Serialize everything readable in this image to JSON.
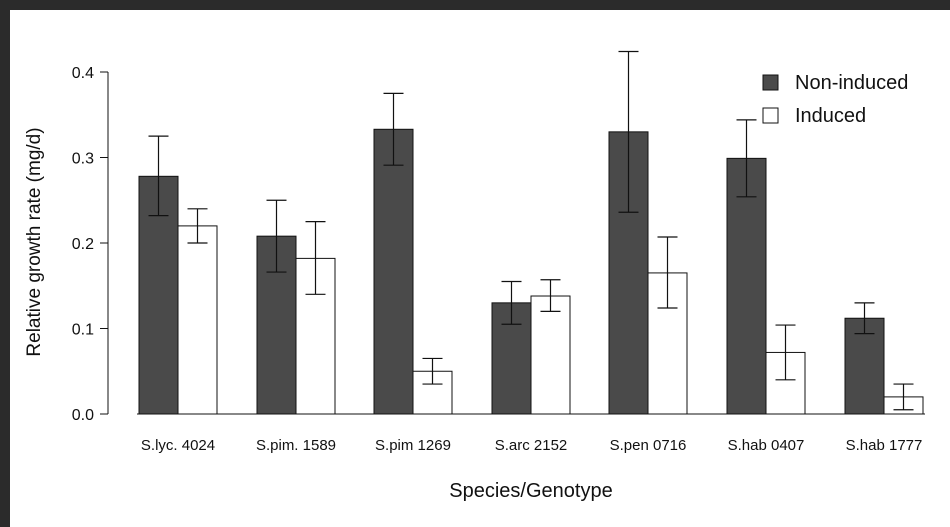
{
  "chart_data": {
    "type": "bar",
    "title": "",
    "xlabel": "Species/Genotype",
    "ylabel": "Relative growth rate (mg/d)",
    "ylim": [
      0,
      0.4
    ],
    "yticks": [
      "0.0",
      "0.1",
      "0.2",
      "0.3",
      "0.4"
    ],
    "categories": [
      "S.lyc. 4024",
      "S.pim. 1589",
      "S.pim 1269",
      "S.arc 2152",
      "S.pen 0716",
      "S.hab 0407",
      "S.hab 1777"
    ],
    "series": [
      {
        "name": "Non-induced",
        "color": "#4a4a4a",
        "values": [
          0.278,
          0.208,
          0.333,
          0.13,
          0.33,
          0.299,
          0.112
        ],
        "error_low": [
          0.232,
          0.166,
          0.291,
          0.105,
          0.236,
          0.254,
          0.094
        ],
        "error_high": [
          0.325,
          0.25,
          0.375,
          0.155,
          0.424,
          0.344,
          0.13
        ]
      },
      {
        "name": "Induced",
        "color": "#ffffff",
        "values": [
          0.22,
          0.182,
          0.05,
          0.138,
          0.165,
          0.072,
          0.02
        ],
        "error_low": [
          0.2,
          0.14,
          0.035,
          0.12,
          0.124,
          0.04,
          0.005
        ],
        "error_high": [
          0.24,
          0.225,
          0.065,
          0.157,
          0.207,
          0.104,
          0.035
        ]
      }
    ],
    "legend_position": "top-right",
    "grid": false
  }
}
